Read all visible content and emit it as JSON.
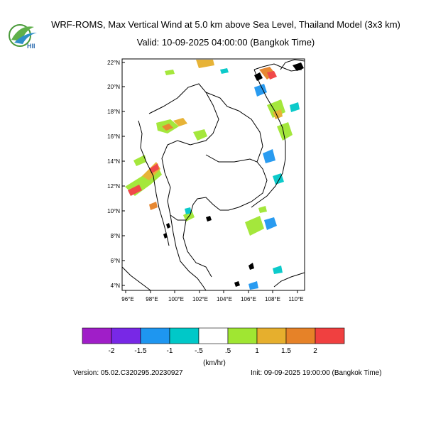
{
  "header": {
    "title": "WRF-ROMS, Max Vertical Wind at 5.0 km above Sea Level, Thailand Model (3x3 km)",
    "subtitle": "Valid: 10-09-2025 04:00:00 (Bangkok Time)"
  },
  "logo": {
    "text": "HII",
    "icon": "hii-logo-icon"
  },
  "map": {
    "lat_range": [
      4,
      22.5
    ],
    "lon_range": [
      95.2,
      110.5
    ],
    "lat_ticks": [
      "4°N",
      "6°N",
      "8°N",
      "10°N",
      "12°N",
      "14°N",
      "16°N",
      "18°N",
      "20°N",
      "22°N"
    ],
    "lon_ticks": [
      "96°E",
      "98°E",
      "100°E",
      "102°E",
      "104°E",
      "106°E",
      "108°E",
      "110°E"
    ]
  },
  "colorbar": {
    "colors": [
      "#a01ec8",
      "#7828e6",
      "#1e96f0",
      "#00c8c8",
      "#ffffff",
      "#a0e632",
      "#e6af2d",
      "#e68228",
      "#f04040"
    ],
    "labels": [
      "-2",
      "-1.5",
      "-1",
      "-.5",
      ".5",
      "1",
      "1.5",
      "2"
    ],
    "unit": "(km/hr)"
  },
  "footer": {
    "version": "Version: 05.02.C320295.20230927",
    "init": "Init: 09-09-2025 19:00:00 (Bangkok Time)"
  }
}
